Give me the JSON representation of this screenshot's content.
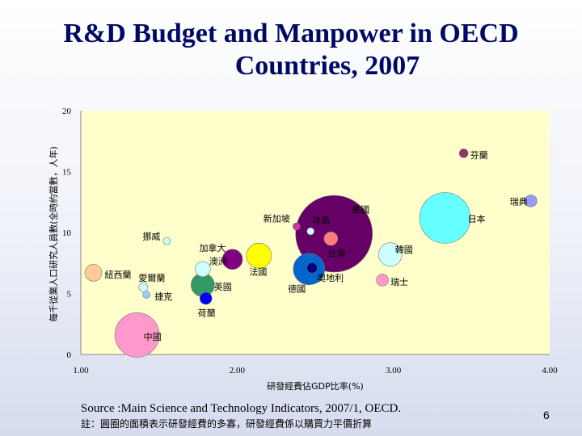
{
  "slide": {
    "title_line1": "R&D Budget and Manpower in OECD",
    "title_line2": "Countries, 2007",
    "source": "Source :Main Science and Technology Indicators, 2007/1, OECD.",
    "note": "註：圓圈的面積表示研發經費的多寡，研發經費係以購買力平價折算",
    "page_number": "6"
  },
  "chart_data": {
    "type": "scatter",
    "title": "",
    "xlabel": "研發經費佔GDP比率(%)",
    "ylabel": "每千從業人口研究人員數(全時約當數，人年)",
    "xlim": [
      1.0,
      4.0
    ],
    "ylim": [
      0,
      20
    ],
    "xticks": [
      "1.00",
      "2.00",
      "3.00",
      "4.00"
    ],
    "yticks": [
      "0",
      "5",
      "10",
      "15",
      "20"
    ],
    "grid": false,
    "plot_bg": "#ffffcc",
    "points": [
      {
        "label": "芬蘭",
        "x": 3.45,
        "y": 16.5,
        "size": 4,
        "color": "#993366"
      },
      {
        "label": "日本",
        "x": 3.33,
        "y": 11.2,
        "size": 30,
        "color": "#66ffff"
      },
      {
        "label": "瑞典",
        "x": 3.88,
        "y": 12.6,
        "size": 6,
        "color": "#9999ff"
      },
      {
        "label": "美國",
        "x": 2.62,
        "y": 9.9,
        "size": 46,
        "color": "#660066"
      },
      {
        "label": "新加坡",
        "x": 2.38,
        "y": 10.5,
        "size": 3,
        "color": "#cc3399"
      },
      {
        "label": "冰島",
        "x": 2.47,
        "y": 10.1,
        "size": 3,
        "color": "#ccffff"
      },
      {
        "label": "台灣",
        "x": 2.6,
        "y": 9.5,
        "size": 7,
        "color": "#ff7c80"
      },
      {
        "label": "挪威",
        "x": 1.55,
        "y": 9.3,
        "size": 3,
        "color": "#ccffff"
      },
      {
        "label": "加拿大",
        "x": 1.97,
        "y": 7.8,
        "size": 11,
        "color": "#800080"
      },
      {
        "label": "法國",
        "x": 2.14,
        "y": 8.1,
        "size": 14,
        "color": "#ffff00"
      },
      {
        "label": "韓國",
        "x": 2.98,
        "y": 8.2,
        "size": 13,
        "color": "#ccffff"
      },
      {
        "label": "澳洲",
        "x": 1.78,
        "y": 7.0,
        "size": 8,
        "color": "#ccffff"
      },
      {
        "label": "德國",
        "x": 2.46,
        "y": 7.0,
        "size": 18,
        "color": "#0066cc"
      },
      {
        "label": "奧地利",
        "x": 2.48,
        "y": 7.1,
        "size": 5,
        "color": "#000080"
      },
      {
        "label": "紐西蘭",
        "x": 1.08,
        "y": 6.7,
        "size": 9,
        "color": "#ffcc99"
      },
      {
        "label": "瑞士",
        "x": 2.93,
        "y": 6.1,
        "size": 6,
        "color": "#ff99cc"
      },
      {
        "label": "英國",
        "x": 1.78,
        "y": 5.7,
        "size": 13,
        "color": "#339966"
      },
      {
        "label": "愛爾蘭",
        "x": 1.4,
        "y": 5.5,
        "size": 4,
        "color": "#ccffff"
      },
      {
        "label": "捷克",
        "x": 1.42,
        "y": 4.9,
        "size": 3,
        "color": "#99ccff"
      },
      {
        "label": "荷蘭",
        "x": 1.8,
        "y": 4.6,
        "size": 6,
        "color": "#0000ff"
      },
      {
        "label": "中國",
        "x": 1.36,
        "y": 1.6,
        "size": 26,
        "color": "#ff99cc"
      }
    ]
  }
}
